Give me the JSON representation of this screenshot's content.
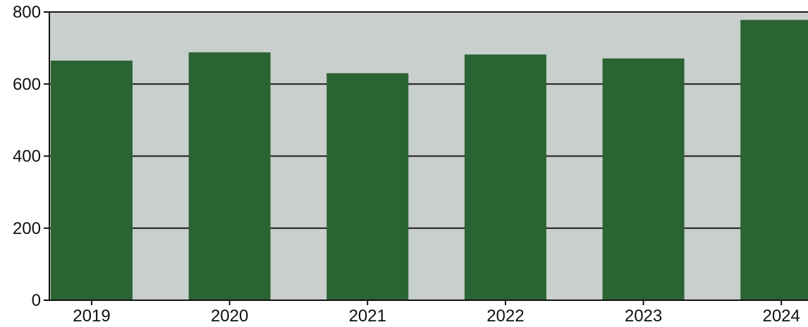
{
  "chart_data": {
    "type": "bar",
    "categories": [
      "2019",
      "2020",
      "2021",
      "2022",
      "2023",
      "2024"
    ],
    "values": [
      665,
      688,
      630,
      682,
      671,
      778
    ],
    "ylim": [
      0,
      800
    ],
    "yticks": [
      0,
      200,
      400,
      600,
      800
    ],
    "grid": true,
    "legend": "none",
    "colors": {
      "bar": "#2b6433",
      "plot_background": "#c9cfcc",
      "gridline": "#1a1a1a",
      "axis": "#111111"
    }
  }
}
